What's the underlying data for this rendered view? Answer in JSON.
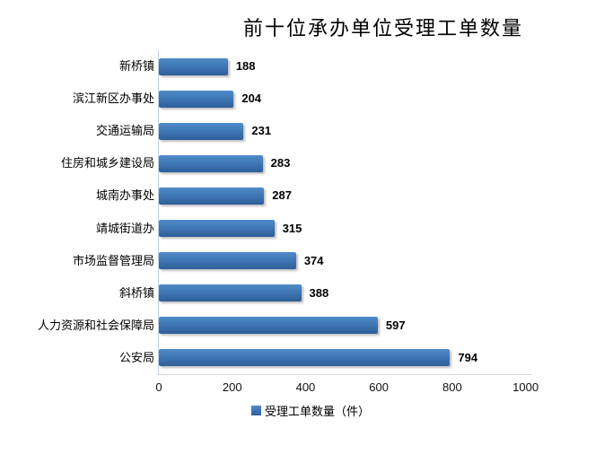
{
  "chart_data": {
    "type": "bar",
    "orientation": "horizontal",
    "title": "前十位承办单位受理工单数量",
    "categories": [
      "新桥镇",
      "滨江新区办事处",
      "交通运输局",
      "住房和城乡建设局",
      "城南办事处",
      "靖城街道办",
      "市场监督管理局",
      "斜桥镇",
      "人力资源和社会保障局",
      "公安局"
    ],
    "values": [
      188,
      204,
      231,
      283,
      287,
      315,
      374,
      388,
      597,
      794
    ],
    "xlabel": "",
    "ylabel": "",
    "xlim": [
      0,
      1000
    ],
    "x_ticks": [
      0,
      200,
      400,
      600,
      800,
      1000
    ],
    "grid": false,
    "legend_label": "受理工单数量（件）",
    "legend_position": "bottom",
    "bar_color_top": "#4f8bc9",
    "bar_color_bottom": "#2e5e99",
    "axis_line_color": "#c9d4e2",
    "text_color": "#000000"
  }
}
